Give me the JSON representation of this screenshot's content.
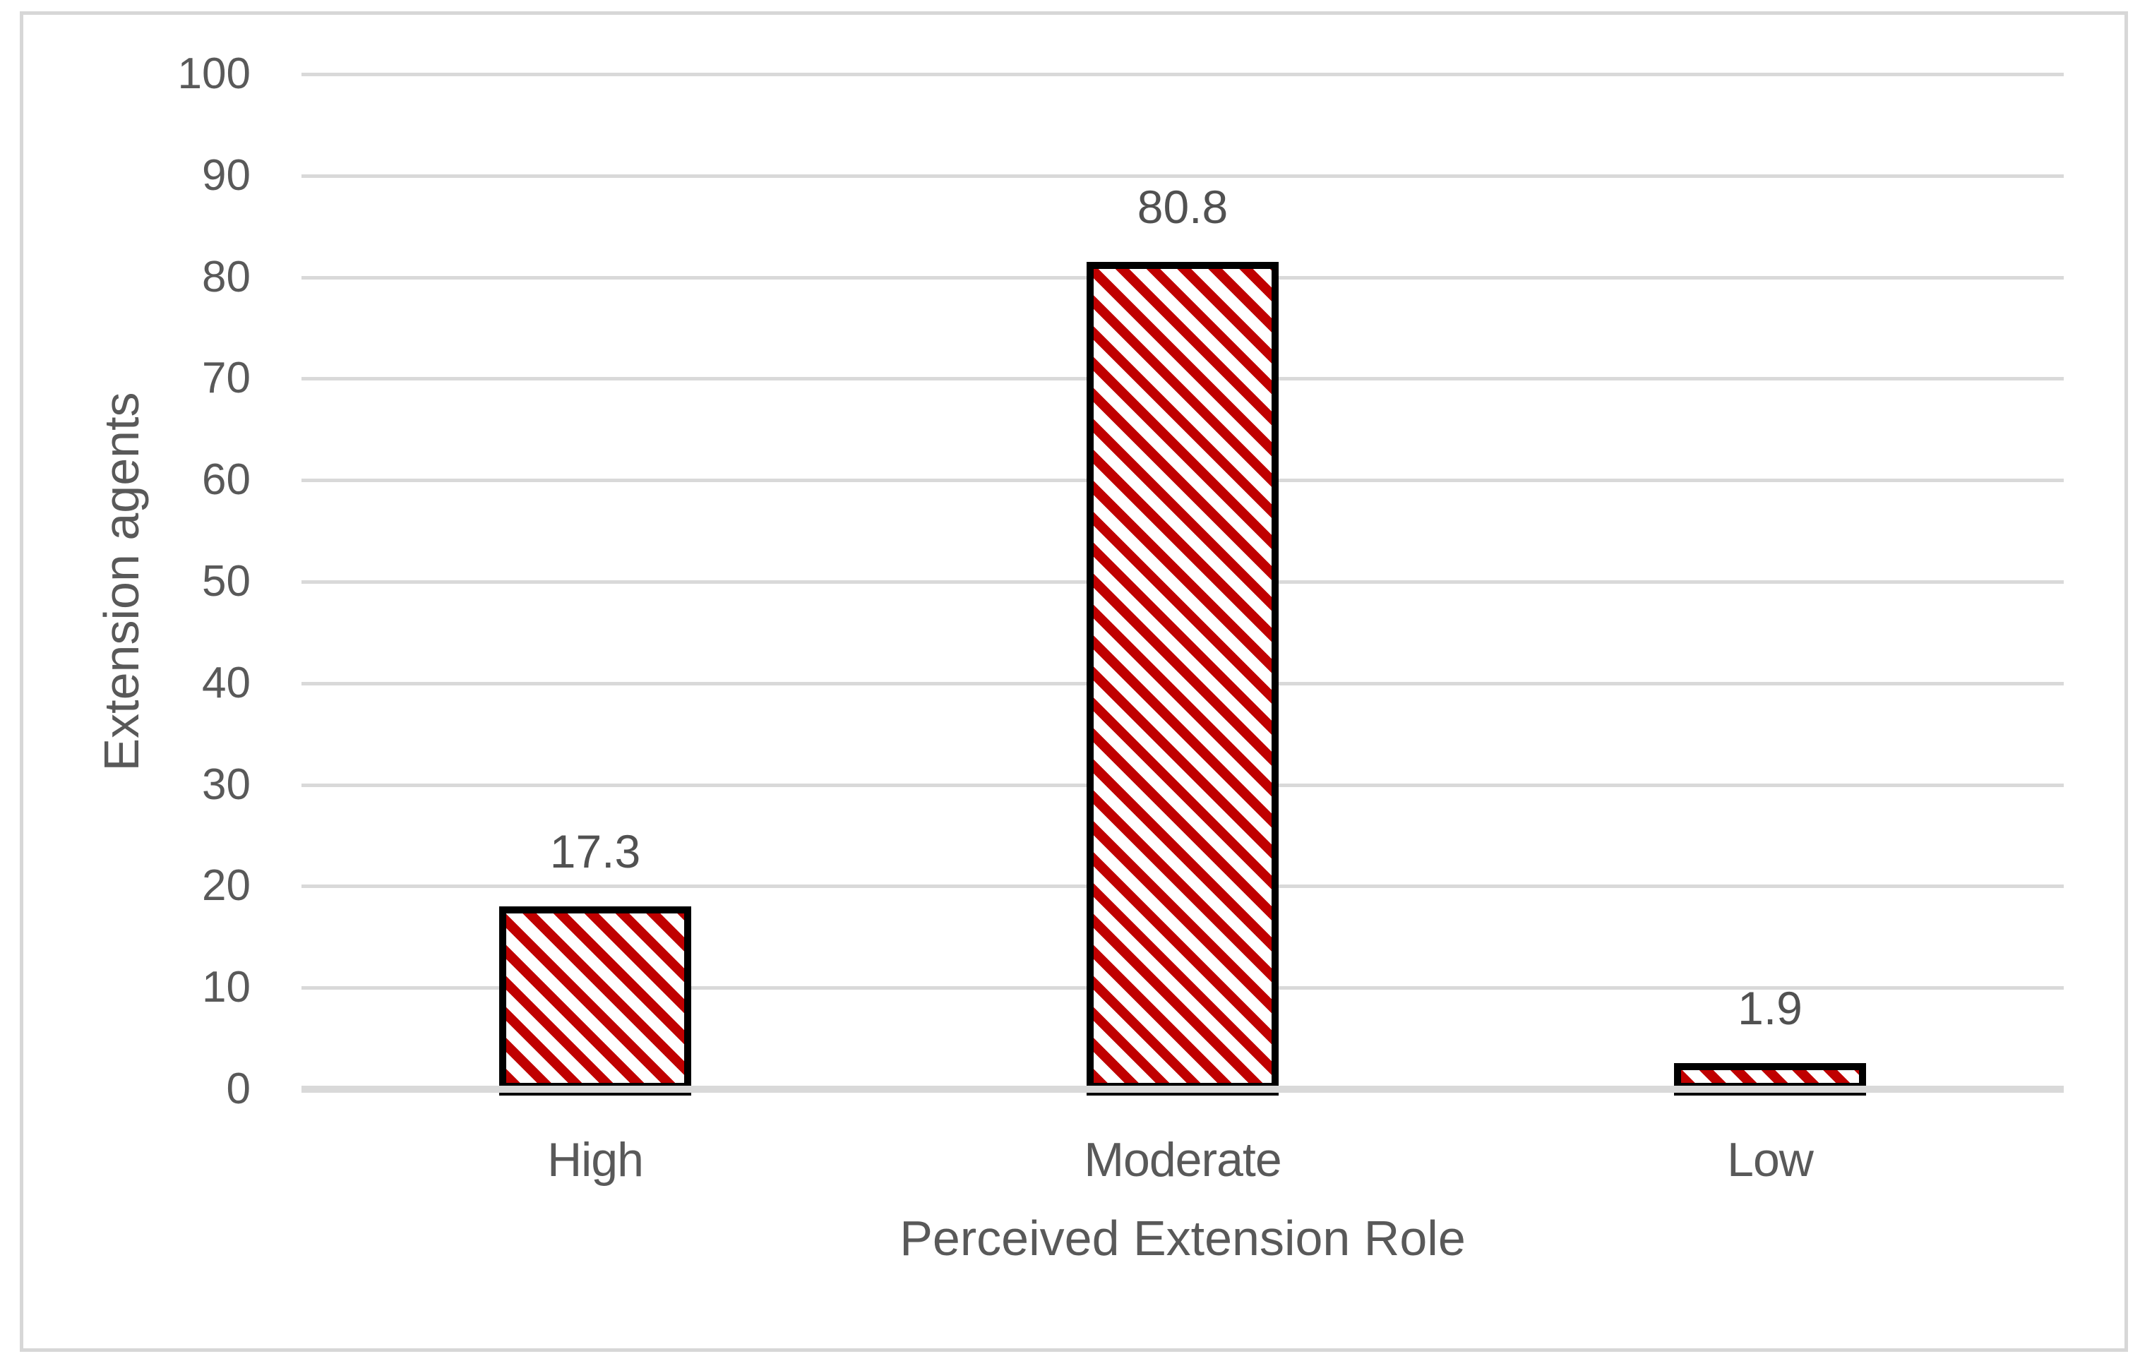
{
  "figure": {
    "background_color": "#ffffff",
    "border_color": "#d7d7d7"
  },
  "chart_data": {
    "type": "bar",
    "title": "",
    "categories": [
      "High",
      "Moderate",
      "Low"
    ],
    "values": [
      17.3,
      80.8,
      1.9
    ],
    "data_labels": [
      "17.3",
      "80.8",
      "1.9"
    ],
    "xlabel": "Perceived Extension Role",
    "ylabel": "Extension agents",
    "ylim": [
      0,
      100
    ],
    "yticks": [
      {
        "value": 0,
        "label": "0"
      },
      {
        "value": 10,
        "label": "10"
      },
      {
        "value": 20,
        "label": "20"
      },
      {
        "value": 30,
        "label": "30"
      },
      {
        "value": 40,
        "label": "40"
      },
      {
        "value": 50,
        "label": "50"
      },
      {
        "value": 60,
        "label": "60"
      },
      {
        "value": 70,
        "label": "70"
      },
      {
        "value": 80,
        "label": "80"
      },
      {
        "value": 90,
        "label": "90"
      },
      {
        "value": 100,
        "label": "100"
      }
    ],
    "grid": "horizontal",
    "legend_position": "none",
    "bar_fill": {
      "pattern": "wide-downward-diagonal-stripes",
      "stripe_color": "#c00000",
      "background_color": "#ffffff",
      "border_color": "#000000"
    },
    "gridline_color": "#d9d9d9",
    "axis_text_color": "#595959"
  }
}
